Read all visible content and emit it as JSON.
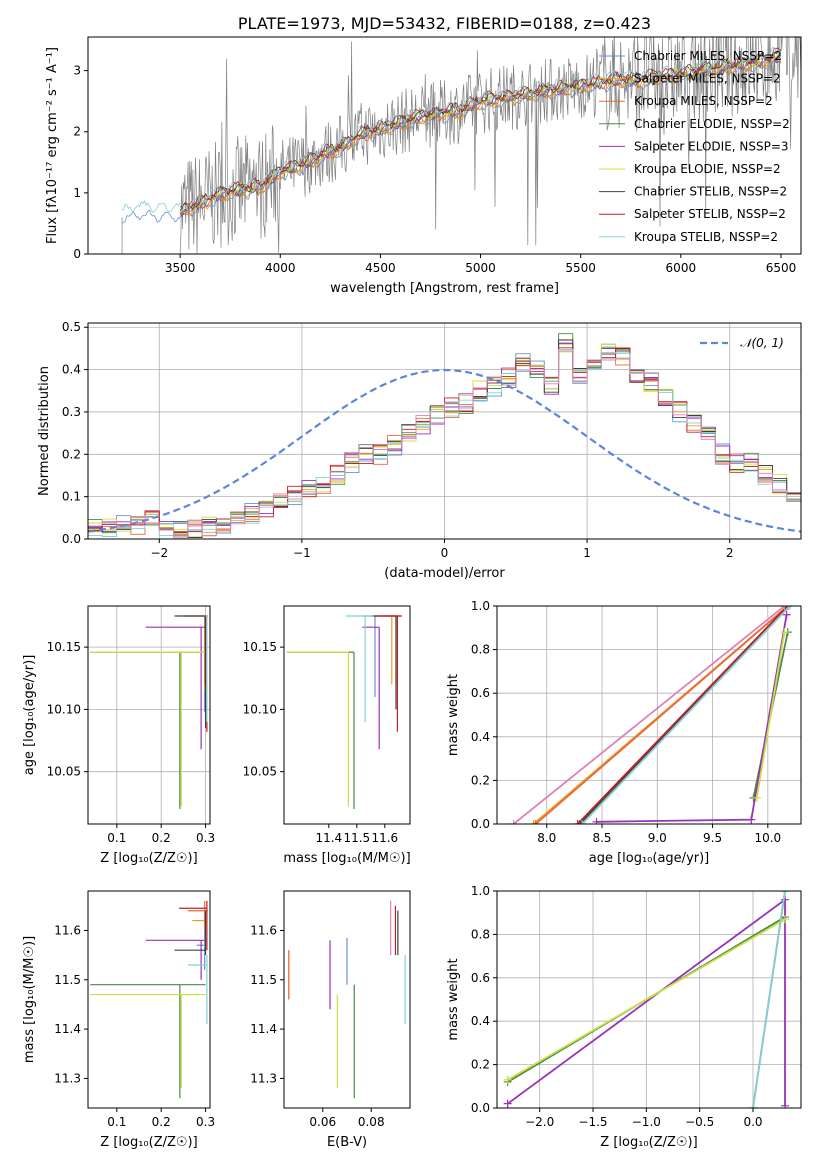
{
  "chart_data": [
    {
      "type": "line",
      "title": "PLATE=1973, MJD=53432, FIBERID=0188, z=0.423",
      "xlabel": "wavelength [Angstrom, rest frame]",
      "ylabel": "Flux [$f_\\lambda 10^{-17}$ erg cm$^{-2}$ s$^{-1}$ A$^{-1}$]",
      "ylabel_display": "Flux [fλ10⁻¹⁷ erg cm⁻² s⁻¹ A⁻¹]",
      "xlim": [
        3040,
        6600
      ],
      "ylim": [
        0,
        3.55
      ],
      "xticks": [
        3500,
        4000,
        4500,
        5000,
        5500,
        6000,
        6500
      ],
      "yticks": [
        0,
        1,
        2,
        3
      ],
      "legend_loc": "upper right",
      "series": [
        {
          "name": "Chabrier MILES, N$_{SSP}$=2",
          "display": "Chabrier MILES, NSSP=2",
          "color": "#6a8fd8"
        },
        {
          "name": "Salpeter MILES, N$_{SSP}$=2",
          "display": "Salpeter MILES, NSSP=2",
          "color": "#e8a020"
        },
        {
          "name": "Kroupa MILES, N$_{SSP}$=2",
          "display": "Kroupa MILES, NSSP=2",
          "color": "#e86a3a"
        },
        {
          "name": "Chabrier ELODIE, N$_{SSP}$=2",
          "display": "Chabrier ELODIE, NSSP=2",
          "color": "#4a8a4a"
        },
        {
          "name": "Salpeter ELODIE, N$_{SSP}$=3",
          "display": "Salpeter ELODIE, NSSP=3",
          "color": "#9a30b8"
        },
        {
          "name": "Kroupa ELODIE, N$_{SSP}$=2",
          "display": "Kroupa ELODIE, NSSP=2",
          "color": "#c8e040"
        },
        {
          "name": "Chabrier STELIB, N$_{SSP}$=2",
          "display": "Chabrier STELIB, NSSP=2",
          "color": "#404040"
        },
        {
          "name": "Salpeter STELIB, N$_{SSP}$=2",
          "display": "Salpeter STELIB, NSSP=2",
          "color": "#c02020"
        },
        {
          "name": "Kroupa STELIB, N$_{SSP}$=2",
          "display": "Kroupa STELIB, NSSP=2",
          "color": "#80d0d8"
        }
      ],
      "model_continuum": {
        "x": [
          3200,
          3300,
          3400,
          3500,
          3600,
          3700,
          3800,
          3900,
          4000,
          4100,
          4200,
          4300,
          4400,
          4500,
          4600,
          4700,
          4800,
          4900,
          5000,
          5100,
          5200,
          5300,
          5400,
          5500,
          5600,
          5700,
          5800,
          5900,
          6000,
          6100,
          6200,
          6300,
          6400,
          6500
        ],
        "y": [
          0.63,
          0.72,
          0.68,
          0.7,
          0.82,
          0.98,
          1.05,
          1.1,
          1.35,
          1.45,
          1.6,
          1.75,
          1.95,
          2.05,
          2.15,
          2.25,
          2.3,
          2.35,
          2.5,
          2.55,
          2.6,
          2.65,
          2.7,
          2.75,
          2.8,
          2.85,
          2.85,
          2.9,
          2.95,
          3.0,
          3.05,
          3.1,
          3.15,
          3.25
        ]
      },
      "observed_color": "#808080"
    },
    {
      "type": "step",
      "xlabel": "(data-model)/error",
      "ylabel": "Normed distribution",
      "xlim": [
        -2.5,
        2.5
      ],
      "ylim": [
        0,
        0.51
      ],
      "xticks": [
        -2,
        -1,
        0,
        1,
        2
      ],
      "yticks": [
        0.0,
        0.1,
        0.2,
        0.3,
        0.4,
        0.5
      ],
      "legend_loc": "upper right",
      "reference": {
        "name": "$\\mathcal{N}(0,1)$",
        "display": "𝒩(0, 1)",
        "color": "#5b87d6"
      },
      "bin_edges_start": -2.5,
      "bin_width": 0.1,
      "base_values": [
        0.025,
        0.03,
        0.04,
        0.03,
        0.045,
        0.02,
        0.02,
        0.025,
        0.03,
        0.03,
        0.05,
        0.06,
        0.07,
        0.09,
        0.1,
        0.12,
        0.13,
        0.15,
        0.18,
        0.2,
        0.2,
        0.22,
        0.25,
        0.27,
        0.29,
        0.31,
        0.32,
        0.35,
        0.36,
        0.38,
        0.42,
        0.4,
        0.36,
        0.46,
        0.39,
        0.41,
        0.44,
        0.43,
        0.39,
        0.37,
        0.33,
        0.3,
        0.27,
        0.24,
        0.2,
        0.18,
        0.18,
        0.15,
        0.13,
        0.1,
        0.1
      ]
    },
    {
      "type": "scatter",
      "xlabel": "Z [log$_{10}$($Z/Z_\\odot$)]",
      "xlabel_display": "Z [log₁₀(Z/Z☉)]",
      "ylabel": "age  [log$_{10}$($age/yr$)]",
      "ylabel_display": "age  [log₁₀(age/yr)]",
      "xlim": [
        0.035,
        0.31
      ],
      "ylim": [
        10.008,
        10.183
      ],
      "xticks": [
        0.1,
        0.2,
        0.3
      ],
      "yticks": [
        10.05,
        10.1,
        10.15
      ],
      "series": [
        {
          "color": "#6a8fd8",
          "x": 0.298,
          "y": 10.175,
          "xerr": [
            0.298,
            0.298
          ],
          "yerr": [
            10.098,
            10.175
          ]
        },
        {
          "color": "#e8a020",
          "x": 0.298,
          "y": 10.175,
          "xerr": [
            0.25,
            0.298
          ],
          "yerr": [
            10.115,
            10.175
          ]
        },
        {
          "color": "#e86a3a",
          "x": 0.298,
          "y": 10.175,
          "xerr": [
            0.255,
            0.305
          ],
          "yerr": [
            10.12,
            10.175
          ]
        },
        {
          "color": "#4a8a4a",
          "x": 0.242,
          "y": 10.146,
          "xerr": [
            0.04,
            0.3
          ],
          "yerr": [
            10.02,
            10.146
          ]
        },
        {
          "color": "#9a30b8",
          "x": 0.29,
          "y": 10.166,
          "xerr": [
            0.165,
            0.3
          ],
          "yerr": [
            10.068,
            10.166
          ]
        },
        {
          "color": "#c8e040",
          "x": 0.245,
          "y": 10.146,
          "xerr": [
            0.04,
            0.3
          ],
          "yerr": [
            10.022,
            10.146
          ]
        },
        {
          "color": "#404040",
          "x": 0.3,
          "y": 10.175,
          "xerr": [
            0.23,
            0.3
          ],
          "yerr": [
            10.085,
            10.175
          ]
        },
        {
          "color": "#c02020",
          "x": 0.303,
          "y": 10.175,
          "xerr": [
            0.3,
            0.305
          ],
          "yerr": [
            10.082,
            10.175
          ]
        },
        {
          "color": "#80d0d8",
          "x": 0.303,
          "y": 10.175,
          "xerr": [
            0.3,
            0.305
          ],
          "yerr": [
            10.09,
            10.175
          ]
        }
      ]
    },
    {
      "type": "scatter",
      "xlabel": "mass [log$_{10}$($M/M_\\odot$)]",
      "xlabel_display": "mass [log₁₀(M/M☉)]",
      "xlim": [
        11.24,
        11.69
      ],
      "ylim": [
        10.008,
        10.183
      ],
      "xticks": [
        11.4,
        11.5,
        11.6
      ],
      "yticks": [
        10.05,
        10.1,
        10.15
      ],
      "series": [
        {
          "color": "#6a8fd8",
          "x": 11.565,
          "y": 10.175,
          "xerr": [
            11.52,
            11.6
          ],
          "yerr": [
            10.11,
            10.175
          ]
        },
        {
          "color": "#e8a020",
          "x": 11.625,
          "y": 10.175,
          "xerr": [
            11.6,
            11.66
          ],
          "yerr": [
            10.12,
            10.175
          ]
        },
        {
          "color": "#e86a3a",
          "x": 11.64,
          "y": 10.175,
          "xerr": [
            11.6,
            11.66
          ],
          "yerr": [
            10.12,
            10.175
          ]
        },
        {
          "color": "#4a8a4a",
          "x": 11.49,
          "y": 10.146,
          "xerr": [
            11.25,
            11.49
          ],
          "yerr": [
            10.02,
            10.146
          ]
        },
        {
          "color": "#9a30b8",
          "x": 11.58,
          "y": 10.166,
          "xerr": [
            11.52,
            11.58
          ],
          "yerr": [
            10.068,
            10.166
          ]
        },
        {
          "color": "#c8e040",
          "x": 11.47,
          "y": 10.146,
          "xerr": [
            11.25,
            11.47
          ],
          "yerr": [
            10.022,
            10.146
          ]
        },
        {
          "color": "#404040",
          "x": 11.64,
          "y": 10.175,
          "xerr": [
            11.55,
            11.64
          ],
          "yerr": [
            10.1,
            10.175
          ]
        },
        {
          "color": "#c02020",
          "x": 11.645,
          "y": 10.175,
          "xerr": [
            11.56,
            11.66
          ],
          "yerr": [
            10.082,
            10.175
          ]
        },
        {
          "color": "#80d0d8",
          "x": 11.53,
          "y": 10.175,
          "xerr": [
            11.46,
            11.56
          ],
          "yerr": [
            10.09,
            10.175
          ]
        }
      ]
    },
    {
      "type": "line",
      "xlabel": "age  [log$_{10}$($age/yr$)]",
      "xlabel_display": "age  [log₁₀(age/yr)]",
      "ylabel": "mass weight",
      "xlim": [
        7.55,
        10.3
      ],
      "ylim": [
        0,
        1
      ],
      "xticks": [
        8.0,
        8.5,
        9.0,
        9.5,
        10.0
      ],
      "yticks": [
        0.0,
        0.2,
        0.4,
        0.6,
        0.8,
        1.0
      ],
      "series": [
        {
          "color": "#6a8fd8",
          "x": [
            8.32,
            10.18
          ],
          "y": [
            0.0,
            1.0
          ]
        },
        {
          "color": "#e8a020",
          "x": [
            7.88,
            10.18
          ],
          "y": [
            0.0,
            1.0
          ]
        },
        {
          "color": "#e86a3a",
          "x": [
            7.9,
            10.18
          ],
          "y": [
            0.0,
            1.0
          ]
        },
        {
          "color": "#4a8a4a",
          "x": [
            9.87,
            10.18
          ],
          "y": [
            0.12,
            0.88
          ]
        },
        {
          "color": "#9a30b8",
          "x": [
            8.45,
            9.85,
            10.17
          ],
          "y": [
            0.01,
            0.02,
            0.96
          ]
        },
        {
          "color": "#c8e040",
          "x": [
            9.9,
            10.15
          ],
          "y": [
            0.12,
            0.88
          ]
        },
        {
          "color": "#404040",
          "x": [
            8.3,
            10.18
          ],
          "y": [
            0.0,
            1.0
          ]
        },
        {
          "color": "#c02020",
          "x": [
            8.28,
            10.18
          ],
          "y": [
            0.0,
            1.0
          ]
        },
        {
          "color": "#80d0d8",
          "x": [
            8.32,
            10.2
          ],
          "y": [
            0.0,
            1.0
          ]
        },
        {
          "color": "#e080b8",
          "x": [
            7.7,
            10.15
          ],
          "y": [
            0.0,
            1.0
          ]
        }
      ]
    },
    {
      "type": "scatter",
      "xlabel": "Z [log$_{10}$($Z/Z_\\odot$)]",
      "xlabel_display": "Z [log₁₀(Z/Z☉)]",
      "ylabel": "mass [log$_{10}$($M/M_\\odot$)]",
      "ylabel_display": "mass [log₁₀(M/M☉)]",
      "xlim": [
        0.035,
        0.31
      ],
      "ylim": [
        11.24,
        11.68
      ],
      "xticks": [
        0.1,
        0.2,
        0.3
      ],
      "yticks": [
        11.3,
        11.4,
        11.5,
        11.6
      ],
      "series": [
        {
          "color": "#6a8fd8",
          "x": 0.298,
          "y": 11.57,
          "xerr": [
            0.28,
            0.298
          ],
          "yerr": [
            11.52,
            11.6
          ]
        },
        {
          "color": "#e8a020",
          "x": 0.298,
          "y": 11.62,
          "xerr": [
            0.27,
            0.298
          ],
          "yerr": [
            11.6,
            11.64
          ]
        },
        {
          "color": "#e86a3a",
          "x": 0.298,
          "y": 11.64,
          "xerr": [
            0.26,
            0.305
          ],
          "yerr": [
            11.6,
            11.66
          ]
        },
        {
          "color": "#4a8a4a",
          "x": 0.242,
          "y": 11.49,
          "xerr": [
            0.04,
            0.3
          ],
          "yerr": [
            11.26,
            11.49
          ]
        },
        {
          "color": "#9a30b8",
          "x": 0.29,
          "y": 11.58,
          "xerr": [
            0.165,
            0.298
          ],
          "yerr": [
            11.5,
            11.58
          ]
        },
        {
          "color": "#c8e040",
          "x": 0.245,
          "y": 11.47,
          "xerr": [
            0.04,
            0.3
          ],
          "yerr": [
            11.28,
            11.47
          ]
        },
        {
          "color": "#404040",
          "x": 0.3,
          "y": 11.56,
          "xerr": [
            0.23,
            0.3
          ],
          "yerr": [
            11.55,
            11.64
          ]
        },
        {
          "color": "#c02020",
          "x": 0.303,
          "y": 11.645,
          "xerr": [
            0.24,
            0.303
          ],
          "yerr": [
            11.56,
            11.66
          ]
        },
        {
          "color": "#80d0d8",
          "x": 0.303,
          "y": 11.53,
          "xerr": [
            0.26,
            0.303
          ],
          "yerr": [
            11.41,
            11.55
          ]
        }
      ]
    },
    {
      "type": "scatter",
      "xlabel": "E(B-V)",
      "xlim": [
        0.044,
        0.096
      ],
      "ylim": [
        11.24,
        11.68
      ],
      "xticks": [
        0.06,
        0.08
      ],
      "yticks": [
        11.3,
        11.4,
        11.5,
        11.6
      ],
      "series": [
        {
          "color": "#6a8fd8",
          "x": 0.07,
          "y": 11.53,
          "yerr": [
            11.49,
            11.585
          ]
        },
        {
          "color": "#e8a020",
          "x": 0.046,
          "y": 11.51,
          "yerr": [
            11.46,
            11.56
          ]
        },
        {
          "color": "#e86a3a",
          "x": 0.046,
          "y": 11.5,
          "yerr": [
            11.46,
            11.56
          ]
        },
        {
          "color": "#4a8a4a",
          "x": 0.073,
          "y": 11.4,
          "yerr": [
            11.26,
            11.49
          ]
        },
        {
          "color": "#9a30b8",
          "x": 0.063,
          "y": 11.5,
          "yerr": [
            11.44,
            11.58
          ]
        },
        {
          "color": "#c8e040",
          "x": 0.066,
          "y": 11.38,
          "yerr": [
            11.28,
            11.47
          ]
        },
        {
          "color": "#404040",
          "x": 0.091,
          "y": 11.6,
          "yerr": [
            11.55,
            11.64
          ]
        },
        {
          "color": "#c02020",
          "x": 0.09,
          "y": 11.6,
          "yerr": [
            11.55,
            11.65
          ]
        },
        {
          "color": "#80d0d8",
          "x": 0.094,
          "y": 11.47,
          "yerr": [
            11.41,
            11.55
          ]
        },
        {
          "color": "#e080b8",
          "x": 0.088,
          "y": 11.6,
          "yerr": [
            11.55,
            11.66
          ]
        }
      ]
    },
    {
      "type": "line",
      "xlabel": "Z [log$_{10}$($Z/Z_\\odot$)]",
      "xlabel_display": "Z [log₁₀(Z/Z☉)]",
      "ylabel": "mass weight",
      "xlim": [
        -2.4,
        0.45
      ],
      "ylim": [
        0,
        1
      ],
      "xticks": [
        -2.0,
        -1.5,
        -1.0,
        -0.5,
        0.0
      ],
      "yticks": [
        0.0,
        0.2,
        0.4,
        0.6,
        0.8,
        1.0
      ],
      "series": [
        {
          "color": "#6a8fd8",
          "x": [
            0.0,
            0.3
          ],
          "y": [
            0.0,
            1.0
          ]
        },
        {
          "color": "#e8a020",
          "x": [
            0.0,
            0.3
          ],
          "y": [
            0.0,
            1.0
          ]
        },
        {
          "color": "#4a8a4a",
          "x": [
            -2.3,
            0.3
          ],
          "y": [
            0.12,
            0.88
          ]
        },
        {
          "color": "#9a30b8",
          "x": [
            -2.3,
            0.3,
            0.3
          ],
          "y": [
            0.02,
            0.96,
            0.01
          ]
        },
        {
          "color": "#c8e040",
          "x": [
            -2.3,
            0.3
          ],
          "y": [
            0.13,
            0.87
          ]
        },
        {
          "color": "#80d0d8",
          "x": [
            0.0,
            0.3
          ],
          "y": [
            0.0,
            1.0
          ]
        }
      ]
    }
  ]
}
